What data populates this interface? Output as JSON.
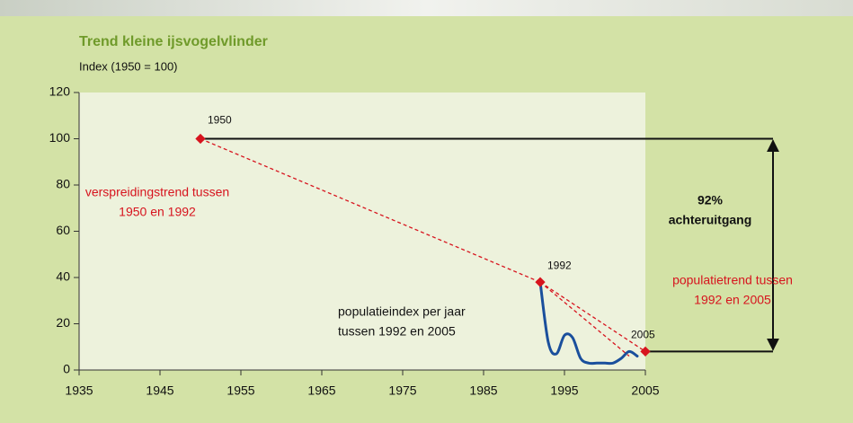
{
  "chart_data": {
    "type": "line",
    "title": "Trend kleine ijsvogelvlinder",
    "y_label": "Index (1950 = 100)",
    "xlim": [
      1935,
      2005
    ],
    "xticks": [
      1935,
      1945,
      1955,
      1965,
      1975,
      1985,
      1995,
      2005
    ],
    "ylim": [
      0,
      120
    ],
    "yticks": [
      0,
      20,
      40,
      60,
      80,
      100,
      120
    ],
    "series": [
      {
        "color": "#1a4f9c",
        "x": [
          1992,
          1993,
          1994,
          1995,
          1996,
          1997,
          1998,
          1999,
          2000,
          2001,
          2002,
          2003,
          2004
        ],
        "values": [
          38,
          12,
          7,
          15,
          14,
          5,
          3,
          3,
          3,
          3,
          5,
          8,
          6
        ]
      }
    ],
    "key_points": {
      "color": "#d7141e",
      "x": [
        1950,
        1992,
        2005
      ],
      "values": [
        100,
        38,
        8
      ],
      "labels": [
        "1950",
        "1992",
        "2005"
      ]
    },
    "trend_lines": [
      {
        "color": "#d7141e",
        "x": [
          1950,
          1992
        ],
        "values": [
          100,
          38
        ]
      },
      {
        "color": "#d7141e",
        "x": [
          1992,
          2005
        ],
        "values": [
          38,
          8
        ]
      },
      {
        "color": "#d7141e",
        "x": [
          1992,
          2003
        ],
        "values": [
          38,
          6
        ]
      }
    ],
    "annotations": [
      {
        "lines": [
          "verspreidingstrend tussen",
          "1950 en 1992"
        ],
        "color": "#d7141e"
      },
      {
        "lines": [
          "populatietrend tussen",
          "1992 en 2005"
        ],
        "color": "#d7141e"
      },
      {
        "lines": [
          "populatieindex per jaar",
          "tussen 1992 en 2005"
        ],
        "color": "#111111"
      },
      {
        "lines": [
          "92%",
          "achteruitgang"
        ],
        "color": "#111111"
      }
    ]
  }
}
